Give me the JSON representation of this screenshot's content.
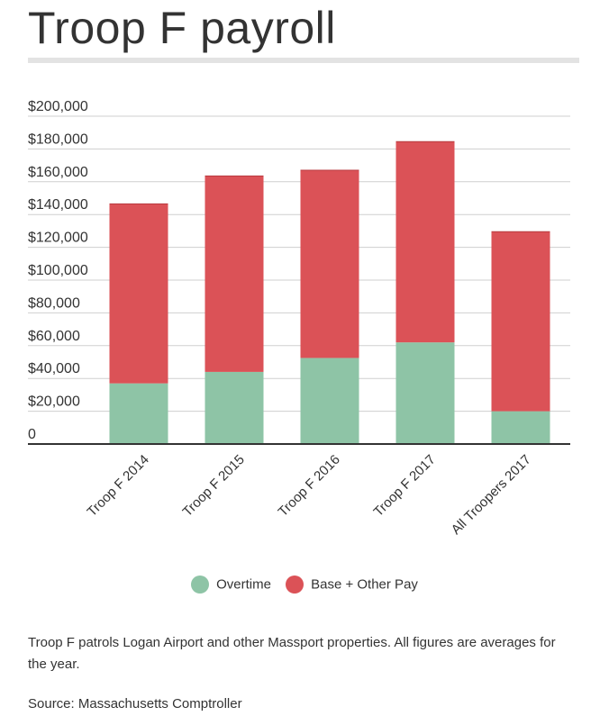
{
  "header": {
    "title": "Troop F payroll"
  },
  "chart_data": {
    "type": "bar",
    "stacked": true,
    "title": "Troop F payroll",
    "categories": [
      "Troop F 2014",
      "Troop F 2015",
      "Troop F 2016",
      "Troop F 2017",
      "All Troopers 2017"
    ],
    "series": [
      {
        "name": "Overtime",
        "color": "#8ec4a6",
        "values": [
          37000,
          44000,
          52500,
          62000,
          20000
        ]
      },
      {
        "name": "Base + Other Pay",
        "color": "#db5257",
        "values": [
          109500,
          119500,
          114500,
          122500,
          109500
        ]
      }
    ],
    "ylim": [
      0,
      200000
    ],
    "yticks": [
      "0",
      "$20,000",
      "$40,000",
      "$60,000",
      "$80,000",
      "$100,000",
      "$120,000",
      "$140,000",
      "$160,000",
      "$180,000",
      "$200,000"
    ],
    "grid": true,
    "legend_position": "bottom"
  },
  "footer": {
    "note": "Troop F patrols Logan Airport and other Massport properties. All figures are averages for the year.",
    "source": "Source: Massachusetts Comptroller"
  }
}
